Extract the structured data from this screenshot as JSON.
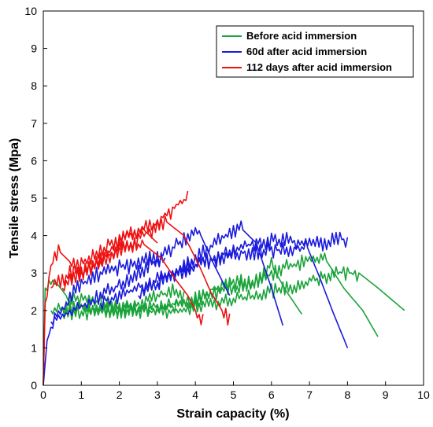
{
  "chart_data": {
    "type": "line",
    "title": "",
    "xlabel": "Strain capacity (%)",
    "ylabel": "Tensile stress (Mpa)",
    "xlim": [
      0,
      10
    ],
    "ylim": [
      0,
      10
    ],
    "x_ticks": [
      "0",
      "1",
      "2",
      "3",
      "4",
      "5",
      "6",
      "7",
      "8",
      "9",
      "10"
    ],
    "y_ticks": [
      "0",
      "1",
      "2",
      "3",
      "4",
      "5",
      "6",
      "7",
      "8",
      "9",
      "10"
    ],
    "grid": false,
    "legend_position": "top-right",
    "series": [
      {
        "name": "Before acid immersion",
        "color": "#1aa33a",
        "curves": [
          {
            "x": [
              0,
              0.05,
              0.3,
              0.6,
              1.0,
              1.5,
              2.0,
              2.5,
              3.0,
              3.4,
              3.7
            ],
            "y": [
              0,
              2.6,
              2.8,
              2.4,
              2.3,
              2.2,
              2.1,
              2.2,
              2.4,
              2.5,
              2.4
            ]
          },
          {
            "x": [
              0.2,
              1.0,
              2.0,
              3.0,
              3.8,
              4.5,
              5.0,
              5.5,
              6.0,
              6.4,
              6.8
            ],
            "y": [
              2.0,
              2.1,
              2.0,
              2.1,
              2.2,
              2.6,
              2.8,
              2.7,
              3.2,
              2.5,
              1.9
            ]
          },
          {
            "x": [
              0.5,
              1.5,
              2.5,
              3.5,
              4.5,
              5.5,
              6.2,
              6.8,
              7.4,
              7.9,
              8.4,
              8.8
            ],
            "y": [
              1.9,
              2.0,
              2.0,
              2.1,
              2.5,
              2.7,
              3.1,
              3.3,
              3.4,
              2.6,
              2.0,
              1.3
            ]
          },
          {
            "x": [
              1.0,
              2.5,
              3.5,
              4.5,
              5.5,
              6.5,
              7.3,
              7.8,
              8.3,
              8.8,
              9.5
            ],
            "y": [
              2.0,
              2.0,
              2.0,
              2.2,
              2.4,
              2.6,
              2.9,
              3.0,
              3.0,
              2.6,
              2.0
            ]
          }
        ]
      },
      {
        "name": "60d after acid immersion",
        "color": "#1a1add",
        "curves": [
          {
            "x": [
              0,
              0.1,
              0.3,
              0.6,
              0.9,
              1.3,
              1.8,
              2.3,
              2.8,
              3.2
            ],
            "y": [
              0,
              1.2,
              1.8,
              2.2,
              2.6,
              2.9,
              3.1,
              3.2,
              3.4,
              3.3
            ]
          },
          {
            "x": [
              0.2,
              0.8,
              1.5,
              2.2,
              2.8,
              3.3,
              3.7,
              4.1,
              4.5,
              4.9
            ],
            "y": [
              1.7,
              2.0,
              2.4,
              2.8,
              3.2,
              3.6,
              3.9,
              4.1,
              3.2,
              2.4
            ]
          },
          {
            "x": [
              1.5,
              2.5,
              3.5,
              4.2,
              4.8,
              5.2,
              5.6,
              6.0,
              6.3
            ],
            "y": [
              2.2,
              2.6,
              3.0,
              3.6,
              4.0,
              4.2,
              3.8,
              2.6,
              1.6
            ]
          },
          {
            "x": [
              2.5,
              3.5,
              4.5,
              5.5,
              6.3,
              6.9,
              7.3,
              7.6,
              7.8,
              8.0
            ],
            "y": [
              2.4,
              3.0,
              3.4,
              3.8,
              3.9,
              3.8,
              2.8,
              2.0,
              1.5,
              1.0
            ]
          },
          {
            "x": [
              3.0,
              4.0,
              5.0,
              6.0,
              6.8,
              7.4,
              7.8,
              8.0
            ],
            "y": [
              2.8,
              3.2,
              3.5,
              3.6,
              3.7,
              3.8,
              3.9,
              3.9
            ]
          }
        ]
      },
      {
        "name": "112 days after acid immersion",
        "color": "#ee1111",
        "curves": [
          {
            "x": [
              0,
              0.05,
              0.2,
              0.4,
              0.7,
              1.0,
              1.4,
              1.8,
              2.2,
              2.6,
              3.0
            ],
            "y": [
              0,
              2.2,
              3.2,
              3.6,
              3.3,
              3.0,
              3.2,
              3.7,
              4.0,
              4.2,
              3.8
            ]
          },
          {
            "x": [
              0.2,
              0.7,
              1.2,
              1.8,
              2.4,
              2.9,
              3.3,
              3.6,
              3.8
            ],
            "y": [
              2.6,
              3.0,
              3.4,
              3.8,
              4.1,
              4.3,
              4.6,
              4.9,
              5.0
            ]
          },
          {
            "x": [
              0.5,
              1.2,
              1.9,
              2.6,
              3.1,
              3.5,
              3.8,
              4.0,
              4.2
            ],
            "y": [
              2.6,
              3.2,
              3.6,
              3.8,
              3.4,
              2.8,
              2.4,
              2.0,
              1.7
            ]
          },
          {
            "x": [
              1.0,
              1.8,
              2.5,
              3.2,
              3.7,
              4.1,
              4.4,
              4.7,
              4.9
            ],
            "y": [
              3.0,
              3.5,
              3.9,
              4.4,
              4.0,
              3.2,
              2.5,
              2.0,
              1.7
            ]
          }
        ]
      }
    ]
  }
}
